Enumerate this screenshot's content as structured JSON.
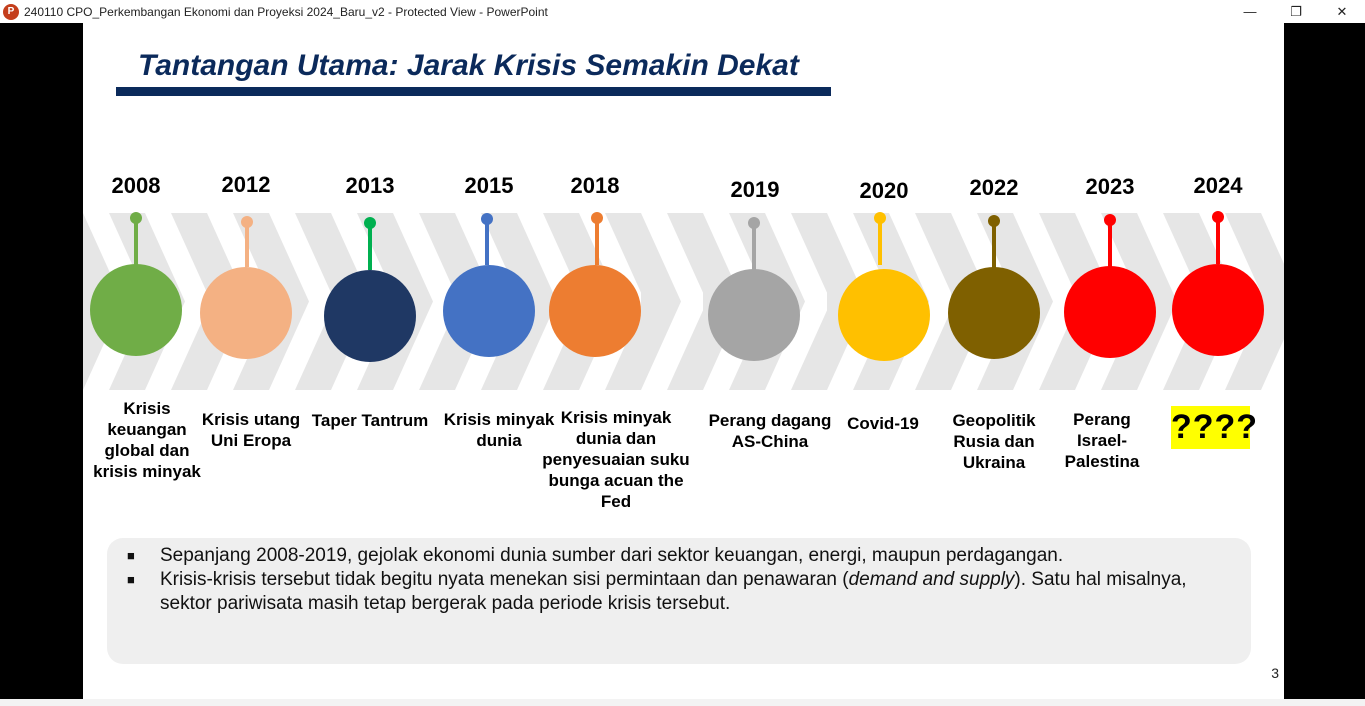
{
  "window": {
    "title": "240110 CPO_Perkembangan Ekonomi dan Proyeksi 2024_Baru_v2  -  Protected View - PowerPoint",
    "app_icon": "P",
    "controls": {
      "minimize": "—",
      "restore": "❐",
      "close": "✕"
    }
  },
  "slide": {
    "title": "Tantangan Utama: Jarak Krisis Semakin Dekat",
    "page_number": "3",
    "timeline": [
      {
        "year": "2008",
        "label": "Krisis keuangan global dan krisis minyak",
        "color": "#70ad47"
      },
      {
        "year": "2012",
        "label": "Krisis utang Uni Eropa",
        "color": "#f4b183"
      },
      {
        "year": "2013",
        "label": "Taper Tantrum",
        "color": "#1f3864",
        "pin_color": "#00b050"
      },
      {
        "year": "2015",
        "label": "Krisis minyak dunia",
        "color": "#4472c4"
      },
      {
        "year": "2018",
        "label": "Krisis minyak dunia dan penyesuaian suku bunga acuan the Fed",
        "color": "#ed7d31"
      },
      {
        "year": "2019",
        "label": "Perang dagang AS-China",
        "color": "#a5a5a5"
      },
      {
        "year": "2020",
        "label": "Covid-19",
        "color": "#ffc000"
      },
      {
        "year": "2022",
        "label": "Geopolitik Rusia dan Ukraina",
        "color": "#7f6000"
      },
      {
        "year": "2023",
        "label": "Perang Israel-Palestina",
        "color": "#ff0000"
      },
      {
        "year": "2024",
        "label": "????",
        "color": "#ff0000"
      }
    ],
    "bullets": [
      {
        "text": "Sepanjang 2008-2019, gejolak ekonomi dunia sumber dari sektor keuangan, energi, maupun perdagangan."
      },
      {
        "text_before": "Krisis-krisis tersebut tidak begitu nyata menekan sisi permintaan dan penawaran (",
        "text_italic": "demand and supply",
        "text_after": "). Satu hal misalnya, sektor pariwisata masih tetap bergerak pada periode krisis tersebut."
      }
    ]
  }
}
